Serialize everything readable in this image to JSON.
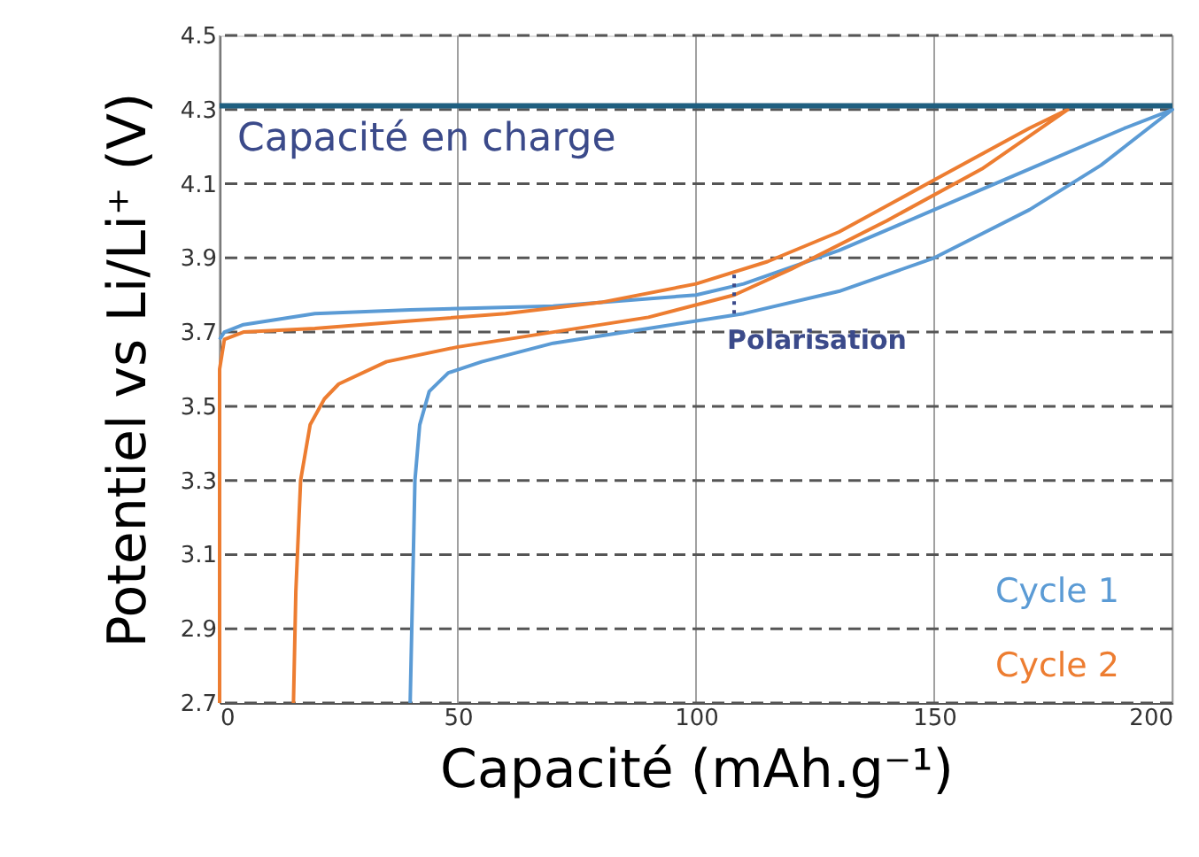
{
  "chart_data": {
    "type": "line",
    "xlabel": "Capacité (mAh.g⁻¹)",
    "ylabel": "Potentiel vs Li/Li⁺ (V)",
    "xlim": [
      0,
      200
    ],
    "xticks": [
      0,
      50,
      100,
      150,
      200
    ],
    "ylim": [
      2.7,
      4.5
    ],
    "yticks": [
      2.7,
      2.9,
      3.1,
      3.3,
      3.5,
      3.7,
      3.9,
      4.1,
      4.3,
      4.5
    ],
    "grid": true,
    "legend": "bottom right",
    "marker": "none",
    "line_style": "solid",
    "series": [
      {
        "name": "Cycle 1",
        "color": "#5b9bd5",
        "x": [
          40,
          40.5,
          41,
          42,
          44,
          48,
          55,
          70,
          90,
          110,
          130,
          150,
          170,
          185,
          200,
          190,
          170,
          150,
          130,
          110,
          100,
          70,
          40,
          20,
          5,
          1,
          0
        ],
        "values": [
          2.7,
          3.0,
          3.3,
          3.45,
          3.54,
          3.59,
          3.62,
          3.67,
          3.71,
          3.75,
          3.81,
          3.9,
          4.03,
          4.15,
          4.3,
          4.25,
          4.14,
          4.03,
          3.92,
          3.83,
          3.8,
          3.77,
          3.76,
          3.75,
          3.72,
          3.7,
          3.68
        ]
      },
      {
        "name": "Cycle 2",
        "color": "#ed7d31",
        "x": [
          15.5,
          16,
          17,
          19,
          22,
          25,
          35,
          50,
          70,
          90,
          108,
          120,
          140,
          160,
          178,
          170,
          150,
          130,
          115,
          100,
          80,
          60,
          40,
          20,
          5,
          1,
          0,
          0
        ],
        "values": [
          2.7,
          3.0,
          3.3,
          3.45,
          3.52,
          3.56,
          3.62,
          3.66,
          3.7,
          3.74,
          3.8,
          3.87,
          4.0,
          4.14,
          4.3,
          4.25,
          4.11,
          3.97,
          3.89,
          3.83,
          3.78,
          3.75,
          3.73,
          3.71,
          3.7,
          3.68,
          3.6,
          2.7
        ]
      },
      {
        "color": "#3b4a8a",
        "line_style": "dotted",
        "x": [
          108,
          108
        ],
        "values": [
          3.75,
          3.86
        ]
      }
    ],
    "ref_lines": [
      {
        "axis": "y",
        "value": 4.31,
        "label": "Capacité en charge",
        "color": "#1f5f80"
      }
    ],
    "annotations": [
      {
        "text": "Polarisation",
        "x": 108,
        "y": 3.75
      }
    ]
  }
}
